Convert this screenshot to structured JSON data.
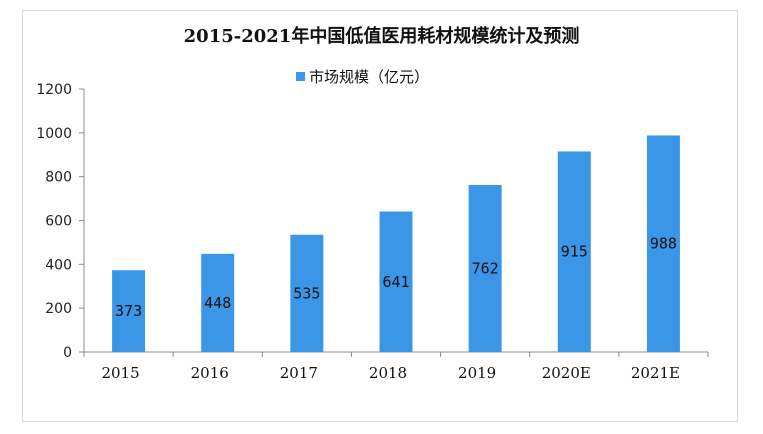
{
  "chart_data": {
    "type": "bar",
    "title": "2015-2021年中国低值医用耗材规模统计及预测",
    "legend_position": "top",
    "categories": [
      "2015",
      "2016",
      "2017",
      "2018",
      "2019",
      "2020E",
      "2021E"
    ],
    "series": [
      {
        "name": "市场规模（亿元）",
        "values": [
          373,
          448,
          535,
          641,
          762,
          915,
          988
        ],
        "color": "#3c96e8"
      }
    ],
    "ylim": [
      0,
      1200
    ],
    "yticks": [
      0,
      200,
      400,
      600,
      800,
      1000,
      1200
    ],
    "grid": false,
    "xlabel": "",
    "ylabel": ""
  }
}
